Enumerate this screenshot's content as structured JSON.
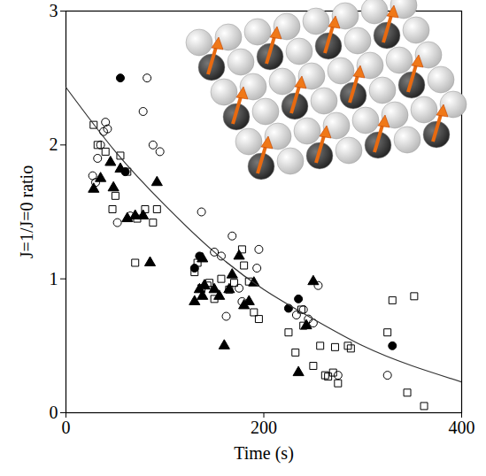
{
  "chart_data": {
    "type": "scatter",
    "x_label": "Time (s)",
    "y_label": "J=1/J=0 ratio",
    "xlim": [
      0,
      400
    ],
    "xticks": [
      0,
      200,
      400
    ],
    "ylim": [
      0,
      3
    ],
    "yticks": [
      0,
      1,
      2,
      3
    ],
    "grid": false,
    "series": [
      {
        "marker": "filled circle",
        "color": "#000000",
        "x": [
          55,
          60,
          130,
          135,
          225,
          235,
          330
        ],
        "values": [
          2.5,
          1.8,
          1.08,
          1.17,
          0.78,
          0.85,
          0.5
        ]
      },
      {
        "marker": "open circle",
        "color": "#000000",
        "x": [
          27,
          30,
          35,
          38,
          40,
          42,
          32,
          52,
          65,
          78,
          82,
          88,
          95,
          137,
          150,
          157,
          162,
          168,
          175,
          178,
          195,
          193,
          233,
          240,
          245,
          250,
          255,
          275,
          325
        ],
        "values": [
          1.77,
          1.72,
          2.0,
          2.1,
          2.17,
          2.12,
          1.9,
          1.42,
          1.47,
          2.25,
          2.5,
          2.0,
          1.95,
          1.5,
          1.2,
          1.17,
          0.72,
          1.32,
          0.93,
          0.83,
          1.22,
          1.08,
          0.73,
          0.77,
          0.7,
          0.67,
          0.95,
          0.28,
          0.28
        ]
      },
      {
        "marker": "open square",
        "color": "#000000",
        "x": [
          28,
          32,
          40,
          47,
          50,
          55,
          62,
          70,
          72,
          80,
          88,
          92,
          130,
          133,
          137,
          143,
          145,
          150,
          157,
          165,
          170,
          178,
          180,
          185,
          190,
          195,
          225,
          232,
          238,
          240,
          250,
          257,
          262,
          265,
          270,
          275,
          272,
          285,
          288,
          325,
          330,
          345,
          352,
          362
        ],
        "values": [
          2.15,
          2.0,
          1.95,
          1.52,
          1.62,
          1.92,
          1.8,
          1.12,
          1.45,
          1.52,
          1.42,
          1.52,
          1.05,
          1.12,
          0.93,
          0.95,
          0.97,
          0.85,
          1.0,
          0.92,
          0.97,
          1.22,
          1.1,
          0.98,
          0.75,
          0.7,
          0.6,
          0.45,
          0.77,
          0.65,
          0.35,
          0.5,
          0.28,
          0.27,
          0.3,
          0.22,
          0.49,
          0.5,
          0.48,
          0.6,
          0.84,
          0.15,
          0.87,
          0.05
        ]
      },
      {
        "marker": "filled triangle",
        "color": "#000000",
        "x": [
          28,
          35,
          45,
          48,
          55,
          62,
          70,
          78,
          85,
          92,
          130,
          135,
          138,
          138,
          140,
          150,
          155,
          160,
          165,
          168,
          175,
          180,
          185,
          190,
          235,
          243,
          250
        ],
        "values": [
          1.67,
          1.75,
          1.87,
          1.68,
          1.82,
          1.45,
          1.47,
          1.47,
          1.12,
          1.72,
          0.83,
          0.92,
          1.15,
          0.87,
          0.95,
          0.92,
          0.87,
          0.5,
          0.92,
          1.03,
          1.17,
          0.8,
          0.83,
          0.97,
          0.3,
          0.65,
          0.98
        ]
      },
      {
        "type": "line",
        "line_style": "solid",
        "color": "#333333",
        "x": [
          0,
          50,
          100,
          150,
          200,
          250,
          300,
          350,
          400
        ],
        "values": [
          2.43,
          1.95,
          1.55,
          1.2,
          0.92,
          0.7,
          0.5,
          0.35,
          0.23
        ]
      }
    ]
  }
}
